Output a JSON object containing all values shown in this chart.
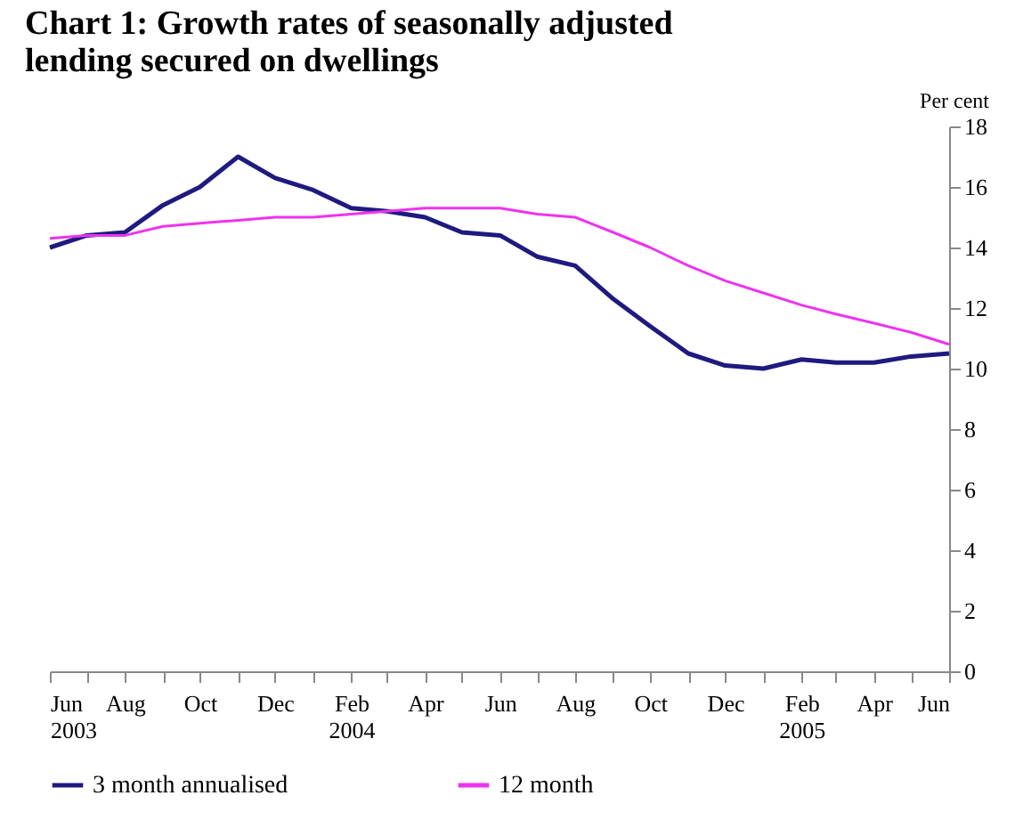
{
  "chart_data": {
    "type": "line",
    "title": "Chart 1: Growth rates of seasonally adjusted lending secured on dwellings",
    "ylabel": "Per cent",
    "x": [
      "2003-06",
      "2003-07",
      "2003-08",
      "2003-09",
      "2003-10",
      "2003-11",
      "2003-12",
      "2004-01",
      "2004-02",
      "2004-03",
      "2004-04",
      "2004-05",
      "2004-06",
      "2004-07",
      "2004-08",
      "2004-09",
      "2004-10",
      "2004-11",
      "2004-12",
      "2005-01",
      "2005-02",
      "2005-03",
      "2005-04",
      "2005-05",
      "2005-06"
    ],
    "series": [
      {
        "name": "3 month annualised",
        "color": "#1f1a7f",
        "values": [
          14.0,
          14.4,
          14.5,
          15.4,
          16.0,
          17.0,
          16.3,
          15.9,
          15.3,
          15.2,
          15.0,
          14.5,
          14.4,
          13.7,
          13.4,
          12.3,
          11.4,
          10.5,
          10.1,
          10.0,
          10.3,
          10.2,
          10.2,
          10.4,
          10.5
        ]
      },
      {
        "name": "12 month",
        "color": "#ee33ee",
        "values": [
          14.3,
          14.4,
          14.4,
          14.7,
          14.8,
          14.9,
          15.0,
          15.0,
          15.1,
          15.2,
          15.3,
          15.3,
          15.3,
          15.1,
          15.0,
          14.5,
          14.0,
          13.4,
          12.9,
          12.5,
          12.1,
          11.8,
          11.5,
          11.2,
          10.8
        ]
      }
    ],
    "xlim": [
      "2003-06",
      "2005-06"
    ],
    "xticks": [
      {
        "value": "2003-06",
        "label": "Jun 2003"
      },
      {
        "value": "2003-07",
        "label": null
      },
      {
        "value": "2003-08",
        "label": "Aug"
      },
      {
        "value": "2003-09",
        "label": null
      },
      {
        "value": "2003-10",
        "label": "Oct"
      },
      {
        "value": "2003-11",
        "label": null
      },
      {
        "value": "2003-12",
        "label": "Dec"
      },
      {
        "value": "2004-01",
        "label": null
      },
      {
        "value": "2004-02",
        "label": "Feb 2004"
      },
      {
        "value": "2004-03",
        "label": null
      },
      {
        "value": "2004-04",
        "label": "Apr"
      },
      {
        "value": "2004-05",
        "label": null
      },
      {
        "value": "2004-06",
        "label": "Jun"
      },
      {
        "value": "2004-07",
        "label": null
      },
      {
        "value": "2004-08",
        "label": "Aug"
      },
      {
        "value": "2004-09",
        "label": null
      },
      {
        "value": "2004-10",
        "label": "Oct"
      },
      {
        "value": "2004-11",
        "label": null
      },
      {
        "value": "2004-12",
        "label": "Dec"
      },
      {
        "value": "2005-01",
        "label": null
      },
      {
        "value": "2005-02",
        "label": "Feb 2005"
      },
      {
        "value": "2005-03",
        "label": null
      },
      {
        "value": "2005-04",
        "label": "Apr"
      },
      {
        "value": "2005-05",
        "label": null
      },
      {
        "value": "2005-06",
        "label": "Jun"
      }
    ],
    "ylim": [
      0,
      18
    ],
    "yticks": [
      0,
      2,
      4,
      6,
      8,
      10,
      12,
      14,
      16,
      18
    ],
    "grid": false,
    "legend": "bottom",
    "line_style": "solid",
    "marker": "none"
  }
}
